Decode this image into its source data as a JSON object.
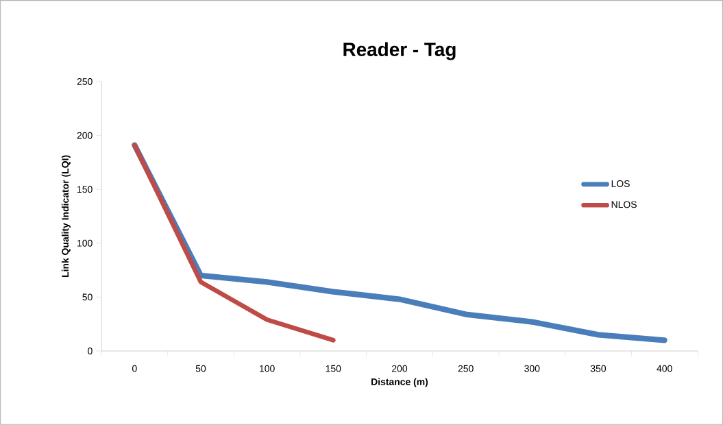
{
  "chart_data": {
    "type": "line",
    "title": "Reader - Tag",
    "xlabel": "Distance (m)",
    "ylabel": "Link Quality Indicator (LQI)",
    "categories": [
      "0",
      "50",
      "100",
      "150",
      "200",
      "250",
      "300",
      "350",
      "400"
    ],
    "series": [
      {
        "name": "LOS",
        "color": "#4a7ebb",
        "values": [
          191,
          70,
          64,
          55,
          48,
          34,
          27,
          15,
          10
        ]
      },
      {
        "name": "NLOS",
        "color": "#be4b48",
        "values": [
          191,
          64,
          29,
          10,
          null,
          null,
          null,
          null,
          null
        ]
      }
    ],
    "ylim": [
      0,
      250
    ],
    "yticks": [
      0,
      50,
      100,
      150,
      200,
      250
    ],
    "grid": false,
    "legend": "right",
    "marker": "none",
    "line_style": "solid"
  }
}
